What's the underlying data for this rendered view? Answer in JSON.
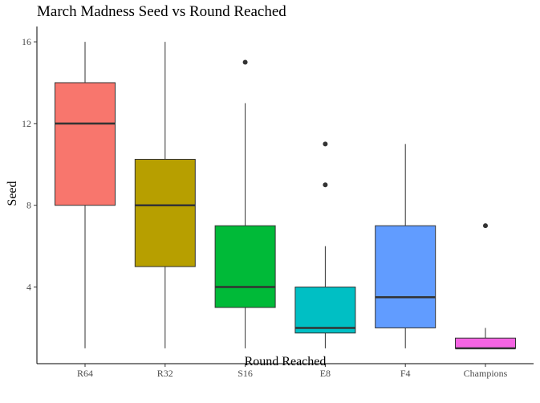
{
  "chart_data": {
    "type": "boxplot",
    "title": "March Madness Seed vs Round Reached",
    "xlabel": "Round Reached",
    "ylabel": "Seed",
    "ylim": [
      0.25,
      16.75
    ],
    "yticks": [
      4,
      8,
      12,
      16
    ],
    "grid": false,
    "legend": "none",
    "categories": [
      "R64",
      "R32",
      "S16",
      "E8",
      "F4",
      "Champions"
    ],
    "boxes": [
      {
        "category": "R64",
        "min": 1,
        "q1": 8,
        "median": 12,
        "q3": 14,
        "max": 16,
        "outliers": [],
        "color": "#F8766D"
      },
      {
        "category": "R32",
        "min": 1,
        "q1": 5,
        "median": 8,
        "q3": 10.25,
        "max": 16,
        "outliers": [],
        "color": "#B79F00"
      },
      {
        "category": "S16",
        "min": 1,
        "q1": 3,
        "median": 4,
        "q3": 7,
        "max": 13,
        "outliers": [
          15
        ],
        "color": "#00BA38"
      },
      {
        "category": "E8",
        "min": 1,
        "q1": 1.75,
        "median": 2,
        "q3": 4,
        "max": 6,
        "outliers": [
          9,
          11
        ],
        "color": "#00BFC4"
      },
      {
        "category": "F4",
        "min": 1,
        "q1": 2,
        "median": 3.5,
        "q3": 7,
        "max": 11,
        "outliers": [],
        "color": "#619CFF"
      },
      {
        "category": "Champions",
        "min": 1,
        "q1": 1,
        "median": 1,
        "q3": 1.5,
        "max": 2,
        "outliers": [
          7
        ],
        "color": "#F564E3"
      }
    ]
  }
}
